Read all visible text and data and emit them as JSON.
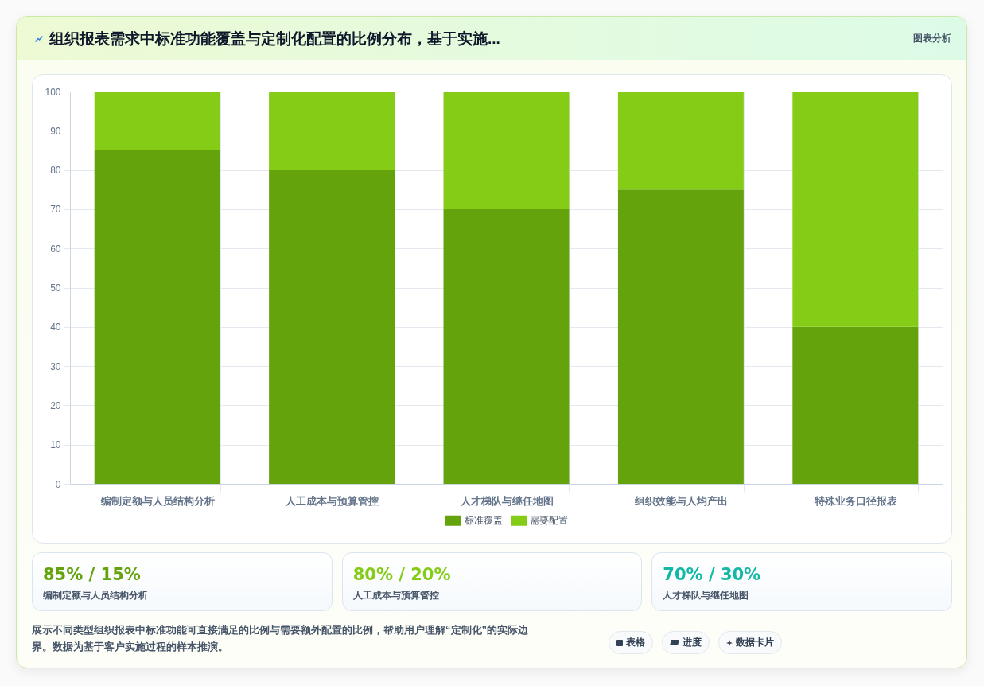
{
  "chart_data": [
    {
      "type": "bar",
      "title": "组织报表需求中标准功能覆盖与定制化配置的比例分布，基于实施...",
      "categories": [
        "编制定额与人员结构分析",
        "人工成本与预算管控",
        "人才梯队与继任地图",
        "组织效能与人均产出",
        "特殊业务口径报表"
      ],
      "series": [
        {
          "name": "标准覆盖",
          "color": "#65a30d",
          "values": [
            85,
            80,
            70,
            75,
            40
          ]
        },
        {
          "name": "需要配置",
          "color": "#84cc16",
          "values": [
            15,
            20,
            30,
            25,
            60
          ]
        }
      ],
      "stacked": true,
      "ylim": [
        0,
        100
      ],
      "yticks": [
        0,
        10,
        20,
        30,
        40,
        50,
        60,
        70,
        80,
        90,
        100
      ],
      "grid": true,
      "legend": "bottom",
      "annotations": [
        "图表分析",
        "展示不同类型组织报表中标准功能可直接满足的比例与需要额外配置的比例，帮助用户理解“定制化”的实际边界。数据为基于客户实施过程的样本推演。",
        "表格",
        "进度",
        "数据卡片"
      ]
    },
    {
      "type": "other",
      "categories": [
        "编制定额与人员结构分析",
        "人工成本与预算管控",
        "人才梯队与继任地图"
      ],
      "value_labels": [
        "85% / 15%",
        "80% / 20%",
        "70% / 30%"
      ]
    }
  ]
}
